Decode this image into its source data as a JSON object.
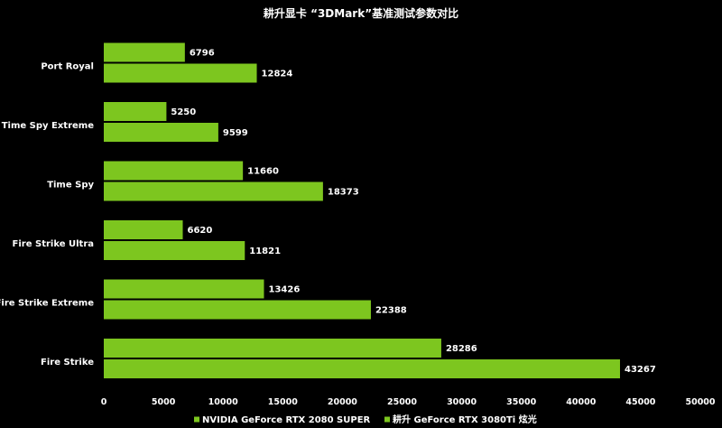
{
  "chart_data": {
    "type": "bar",
    "orientation": "horizontal",
    "title": "耕升显卡 “3DMark”基准测试参数对比",
    "categories": [
      "Port Royal",
      "Time Spy Extreme",
      "Time Spy",
      "Fire Strike Ultra",
      "Fire Strike Extreme",
      "Fire Strike"
    ],
    "series": [
      {
        "name": "NVIDIA GeForce RTX 2080 SUPER",
        "values": [
          6796,
          5250,
          11660,
          6620,
          13426,
          28286
        ],
        "color": "#7dc61f"
      },
      {
        "name": "耕升 GeForce RTX 3080Ti 炫光",
        "values": [
          12824,
          9599,
          18373,
          11821,
          22388,
          43267
        ],
        "color": "#7dc61f"
      }
    ],
    "xlim": [
      0,
      50000
    ],
    "xticks": [
      0,
      5000,
      10000,
      15000,
      20000,
      25000,
      30000,
      35000,
      40000,
      45000,
      50000
    ],
    "grid": false,
    "legend_position": "bottom"
  }
}
